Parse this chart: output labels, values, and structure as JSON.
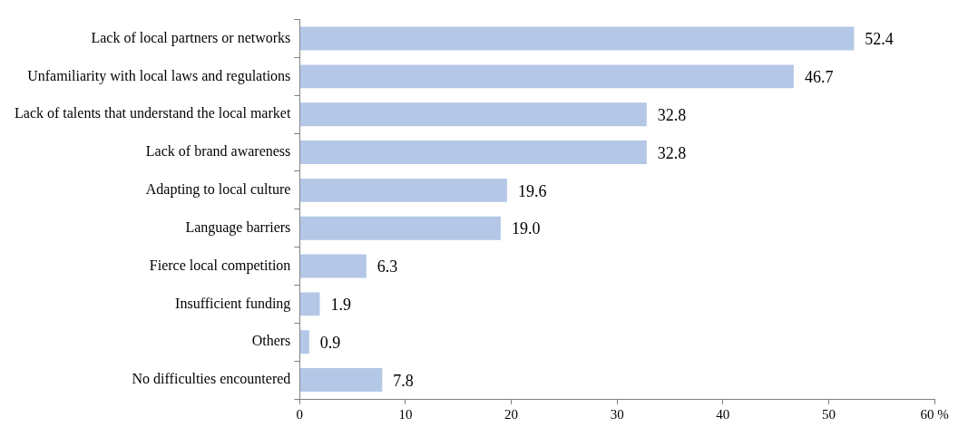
{
  "chart_data": {
    "type": "bar",
    "orientation": "horizontal",
    "categories": [
      "Lack of local partners or networks",
      "Unfamiliarity with local laws and regulations",
      "Lack of talents that understand the local market",
      "Lack of brand awareness",
      "Adapting to local culture",
      "Language barriers",
      "Fierce local competition",
      "Insufficient funding",
      "Others",
      "No difficulties encountered"
    ],
    "values": [
      52.4,
      46.7,
      32.8,
      32.8,
      19.6,
      19.0,
      6.3,
      1.9,
      0.9,
      7.8
    ],
    "color": "#b4c7e7",
    "xlim": [
      0,
      60
    ],
    "xticks": [
      0,
      10,
      20,
      30,
      40,
      50,
      {
        "value": 60,
        "label": "60 %"
      }
    ],
    "value_labels": [
      "52.4",
      "46.7",
      "32.8",
      "32.8",
      "19.6",
      "19.0",
      "6.3",
      "1.9",
      "0.9",
      "7.8"
    ],
    "grid": false,
    "legend": false
  }
}
